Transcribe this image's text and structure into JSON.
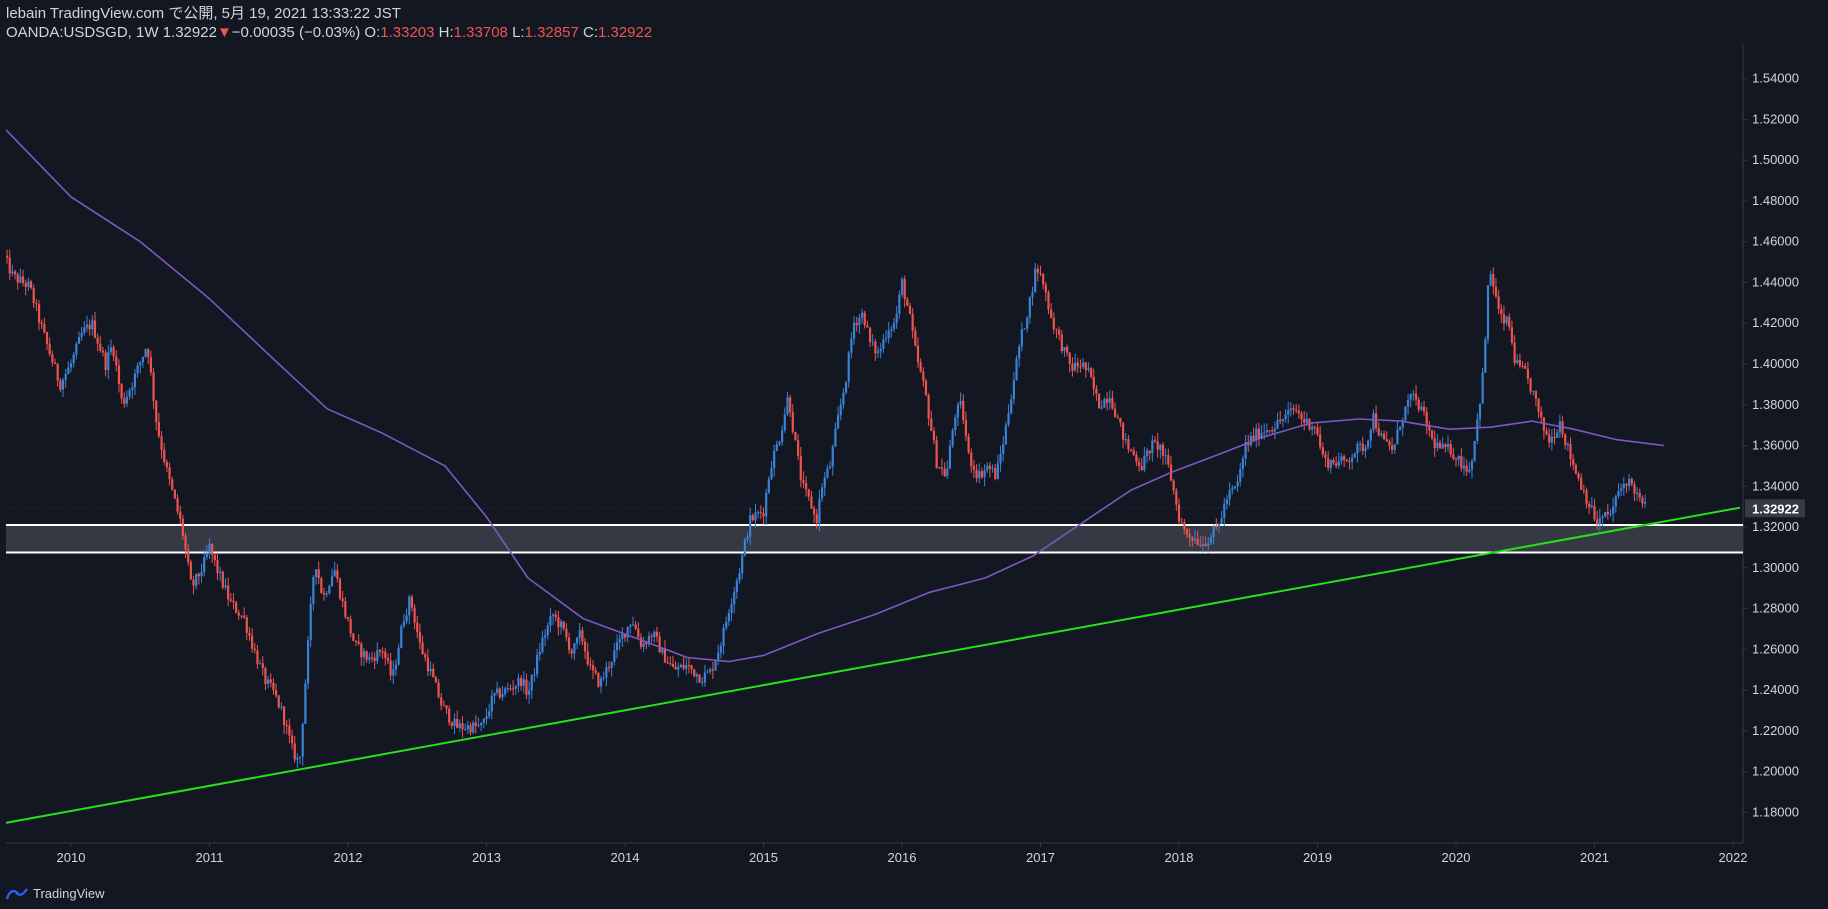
{
  "header": {
    "publish_line": "lebain TradingView.com で公開, 5月 19, 2021 13:33:22 JST",
    "symbol": "OANDA:USDSGD, 1W",
    "last": "1.32922",
    "change_arrow": "▼",
    "change": "−0.00035 (−0.03%)",
    "o_label": "O:",
    "o": "1.33203",
    "h_label": "H:",
    "h": "1.33708",
    "l_label": "L:",
    "l": "1.32857",
    "c_label": "C:",
    "c": "1.32922"
  },
  "footer": {
    "brand": "TradingView",
    "logo_icon": "tradingview-logo-icon"
  },
  "colors": {
    "background": "#131722",
    "up": "#3a82d6",
    "down": "#ef5350",
    "ma": "#7e57c2",
    "trendline": "#26e01a",
    "zone_fill": "#3b3f4a",
    "zone_border": "#ffffff",
    "grid": "#1f2330"
  },
  "chart_data": {
    "type": "candlestick",
    "symbol": "OANDA:USDSGD",
    "timeframe": "1W",
    "x_tick_labels": [
      "2010",
      "2011",
      "2012",
      "2013",
      "2014",
      "2015",
      "2016",
      "2017",
      "2018",
      "2019",
      "2020",
      "2021",
      "2022"
    ],
    "y_tick_labels": [
      "1.54000",
      "1.52000",
      "1.50000",
      "1.48000",
      "1.46000",
      "1.44000",
      "1.42000",
      "1.40000",
      "1.38000",
      "1.36000",
      "1.34000",
      "1.32000",
      "1.30000",
      "1.28000",
      "1.26000",
      "1.24000",
      "1.22000",
      "1.20000",
      "1.18000"
    ],
    "x_range": [
      2009.5,
      2022.05
    ],
    "ylim": [
      1.165,
      1.557
    ],
    "current_price_label": "1.32922",
    "close_path": [
      [
        2009.5,
        1.455
      ],
      [
        2009.58,
        1.443
      ],
      [
        2009.7,
        1.438
      ],
      [
        2009.8,
        1.415
      ],
      [
        2009.92,
        1.39
      ],
      [
        2010.0,
        1.4
      ],
      [
        2010.08,
        1.415
      ],
      [
        2010.15,
        1.42
      ],
      [
        2010.25,
        1.4
      ],
      [
        2010.3,
        1.41
      ],
      [
        2010.37,
        1.38
      ],
      [
        2010.45,
        1.392
      ],
      [
        2010.55,
        1.41
      ],
      [
        2010.62,
        1.37
      ],
      [
        2010.7,
        1.345
      ],
      [
        2010.8,
        1.32
      ],
      [
        2010.87,
        1.29
      ],
      [
        2010.95,
        1.3
      ],
      [
        2011.0,
        1.31
      ],
      [
        2011.05,
        1.3
      ],
      [
        2011.15,
        1.283
      ],
      [
        2011.25,
        1.275
      ],
      [
        2011.32,
        1.26
      ],
      [
        2011.4,
        1.245
      ],
      [
        2011.47,
        1.238
      ],
      [
        2011.53,
        1.228
      ],
      [
        2011.6,
        1.21
      ],
      [
        2011.65,
        1.204
      ],
      [
        2011.72,
        1.27
      ],
      [
        2011.76,
        1.305
      ],
      [
        2011.82,
        1.285
      ],
      [
        2011.9,
        1.3
      ],
      [
        2011.97,
        1.28
      ],
      [
        2012.05,
        1.262
      ],
      [
        2012.15,
        1.255
      ],
      [
        2012.25,
        1.26
      ],
      [
        2012.32,
        1.245
      ],
      [
        2012.4,
        1.275
      ],
      [
        2012.45,
        1.285
      ],
      [
        2012.52,
        1.262
      ],
      [
        2012.6,
        1.248
      ],
      [
        2012.68,
        1.232
      ],
      [
        2012.78,
        1.222
      ],
      [
        2012.88,
        1.222
      ],
      [
        2012.97,
        1.222
      ],
      [
        2013.05,
        1.237
      ],
      [
        2013.15,
        1.24
      ],
      [
        2013.25,
        1.245
      ],
      [
        2013.3,
        1.238
      ],
      [
        2013.4,
        1.264
      ],
      [
        2013.48,
        1.277
      ],
      [
        2013.55,
        1.27
      ],
      [
        2013.62,
        1.258
      ],
      [
        2013.68,
        1.268
      ],
      [
        2013.75,
        1.25
      ],
      [
        2013.82,
        1.243
      ],
      [
        2013.9,
        1.255
      ],
      [
        2013.97,
        1.265
      ],
      [
        2014.05,
        1.275
      ],
      [
        2014.12,
        1.262
      ],
      [
        2014.2,
        1.268
      ],
      [
        2014.27,
        1.258
      ],
      [
        2014.35,
        1.25
      ],
      [
        2014.45,
        1.252
      ],
      [
        2014.55,
        1.246
      ],
      [
        2014.62,
        1.249
      ],
      [
        2014.7,
        1.265
      ],
      [
        2014.75,
        1.28
      ],
      [
        2014.83,
        1.3
      ],
      [
        2014.9,
        1.323
      ],
      [
        2014.95,
        1.326
      ],
      [
        2015.0,
        1.328
      ],
      [
        2015.05,
        1.35
      ],
      [
        2015.12,
        1.365
      ],
      [
        2015.18,
        1.385
      ],
      [
        2015.22,
        1.365
      ],
      [
        2015.28,
        1.34
      ],
      [
        2015.35,
        1.33
      ],
      [
        2015.38,
        1.322
      ],
      [
        2015.42,
        1.34
      ],
      [
        2015.48,
        1.35
      ],
      [
        2015.53,
        1.37
      ],
      [
        2015.6,
        1.395
      ],
      [
        2015.65,
        1.42
      ],
      [
        2015.72,
        1.425
      ],
      [
        2015.77,
        1.41
      ],
      [
        2015.83,
        1.405
      ],
      [
        2015.9,
        1.418
      ],
      [
        2015.95,
        1.42
      ],
      [
        2016.0,
        1.44
      ],
      [
        2016.05,
        1.425
      ],
      [
        2016.1,
        1.405
      ],
      [
        2016.17,
        1.385
      ],
      [
        2016.25,
        1.352
      ],
      [
        2016.32,
        1.345
      ],
      [
        2016.38,
        1.375
      ],
      [
        2016.43,
        1.38
      ],
      [
        2016.48,
        1.355
      ],
      [
        2016.55,
        1.345
      ],
      [
        2016.62,
        1.35
      ],
      [
        2016.68,
        1.345
      ],
      [
        2016.74,
        1.365
      ],
      [
        2016.8,
        1.39
      ],
      [
        2016.85,
        1.41
      ],
      [
        2016.92,
        1.43
      ],
      [
        2016.97,
        1.448
      ],
      [
        2017.02,
        1.44
      ],
      [
        2017.08,
        1.422
      ],
      [
        2017.15,
        1.41
      ],
      [
        2017.22,
        1.398
      ],
      [
        2017.3,
        1.4
      ],
      [
        2017.35,
        1.395
      ],
      [
        2017.42,
        1.38
      ],
      [
        2017.5,
        1.385
      ],
      [
        2017.57,
        1.37
      ],
      [
        2017.62,
        1.36
      ],
      [
        2017.68,
        1.355
      ],
      [
        2017.73,
        1.35
      ],
      [
        2017.8,
        1.36
      ],
      [
        2017.86,
        1.36
      ],
      [
        2017.93,
        1.348
      ],
      [
        2018.0,
        1.325
      ],
      [
        2018.04,
        1.318
      ],
      [
        2018.1,
        1.315
      ],
      [
        2018.17,
        1.312
      ],
      [
        2018.22,
        1.315
      ],
      [
        2018.28,
        1.32
      ],
      [
        2018.35,
        1.335
      ],
      [
        2018.42,
        1.34
      ],
      [
        2018.48,
        1.36
      ],
      [
        2018.55,
        1.365
      ],
      [
        2018.62,
        1.368
      ],
      [
        2018.7,
        1.37
      ],
      [
        2018.78,
        1.375
      ],
      [
        2018.84,
        1.378
      ],
      [
        2018.9,
        1.372
      ],
      [
        2018.98,
        1.37
      ],
      [
        2019.05,
        1.352
      ],
      [
        2019.12,
        1.352
      ],
      [
        2019.2,
        1.352
      ],
      [
        2019.28,
        1.358
      ],
      [
        2019.35,
        1.36
      ],
      [
        2019.4,
        1.375
      ],
      [
        2019.47,
        1.362
      ],
      [
        2019.55,
        1.358
      ],
      [
        2019.6,
        1.372
      ],
      [
        2019.67,
        1.384
      ],
      [
        2019.73,
        1.38
      ],
      [
        2019.78,
        1.372
      ],
      [
        2019.83,
        1.362
      ],
      [
        2019.9,
        1.358
      ],
      [
        2019.96,
        1.358
      ],
      [
        2020.03,
        1.352
      ],
      [
        2020.1,
        1.348
      ],
      [
        2020.15,
        1.37
      ],
      [
        2020.2,
        1.398
      ],
      [
        2020.24,
        1.448
      ],
      [
        2020.28,
        1.435
      ],
      [
        2020.32,
        1.422
      ],
      [
        2020.38,
        1.42
      ],
      [
        2020.43,
        1.4
      ],
      [
        2020.5,
        1.395
      ],
      [
        2020.56,
        1.385
      ],
      [
        2020.62,
        1.37
      ],
      [
        2020.68,
        1.362
      ],
      [
        2020.75,
        1.372
      ],
      [
        2020.8,
        1.36
      ],
      [
        2020.85,
        1.35
      ],
      [
        2020.92,
        1.338
      ],
      [
        2020.98,
        1.328
      ],
      [
        2021.02,
        1.322
      ],
      [
        2021.07,
        1.325
      ],
      [
        2021.12,
        1.327
      ],
      [
        2021.18,
        1.338
      ],
      [
        2021.23,
        1.343
      ],
      [
        2021.28,
        1.34
      ],
      [
        2021.33,
        1.332
      ],
      [
        2021.38,
        1.329
      ]
    ],
    "series": [
      {
        "name": "MA",
        "type": "line",
        "points": [
          [
            2009.5,
            1.517
          ],
          [
            2010.0,
            1.482
          ],
          [
            2010.5,
            1.46
          ],
          [
            2011.0,
            1.432
          ],
          [
            2011.5,
            1.4
          ],
          [
            2011.85,
            1.378
          ],
          [
            2012.25,
            1.366
          ],
          [
            2012.7,
            1.35
          ],
          [
            2013.0,
            1.325
          ],
          [
            2013.3,
            1.295
          ],
          [
            2013.7,
            1.275
          ],
          [
            2014.1,
            1.265
          ],
          [
            2014.45,
            1.256
          ],
          [
            2014.75,
            1.254
          ],
          [
            2015.0,
            1.257
          ],
          [
            2015.4,
            1.268
          ],
          [
            2015.8,
            1.277
          ],
          [
            2016.2,
            1.288
          ],
          [
            2016.6,
            1.295
          ],
          [
            2016.95,
            1.306
          ],
          [
            2017.3,
            1.322
          ],
          [
            2017.65,
            1.338
          ],
          [
            2017.95,
            1.347
          ],
          [
            2018.3,
            1.356
          ],
          [
            2018.6,
            1.364
          ],
          [
            2018.95,
            1.371
          ],
          [
            2019.3,
            1.373
          ],
          [
            2019.6,
            1.372
          ],
          [
            2019.95,
            1.368
          ],
          [
            2020.25,
            1.369
          ],
          [
            2020.55,
            1.372
          ],
          [
            2020.85,
            1.368
          ],
          [
            2021.15,
            1.363
          ],
          [
            2021.5,
            1.36
          ]
        ]
      },
      {
        "name": "Trendline",
        "type": "line",
        "points": [
          [
            2009.5,
            1.1745
          ],
          [
            2022.05,
            1.3295
          ]
        ]
      }
    ],
    "zone": {
      "lower": 1.3075,
      "upper": 1.321
    },
    "grid": false,
    "legend": "none"
  }
}
